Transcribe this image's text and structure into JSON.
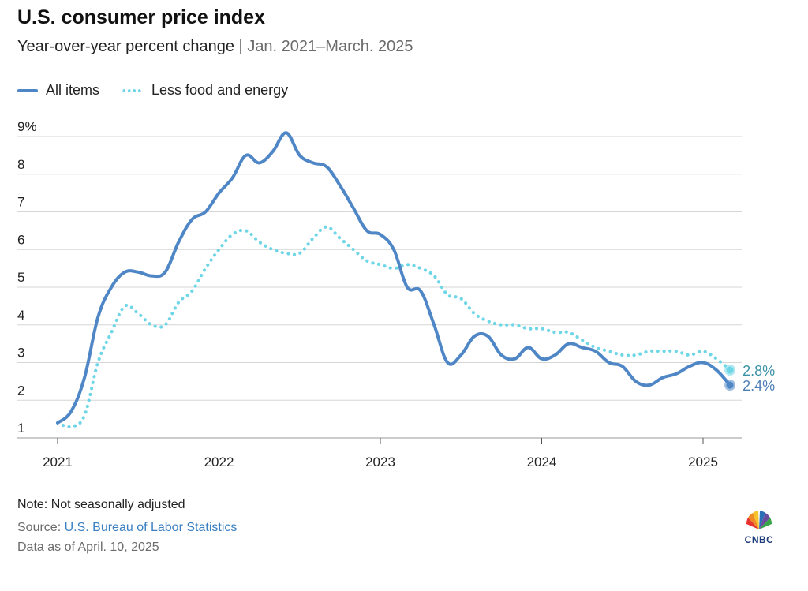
{
  "header": {
    "title": "U.S. consumer price index",
    "subtitle_main": "Year-over-year percent change",
    "subtitle_sep": "|",
    "subtitle_range": "Jan. 2021–March. 2025"
  },
  "legend": {
    "items": [
      {
        "label": "All items",
        "style": "solid",
        "color": "#4f86c6"
      },
      {
        "label": "Less food and energy",
        "style": "dotted",
        "color": "#6ed6e6"
      }
    ]
  },
  "chart_data": {
    "type": "line",
    "title": "U.S. consumer price index",
    "subtitle": "Year-over-year percent change | Jan. 2021–March. 2025",
    "xlabel": "",
    "ylabel": "",
    "ylim": [
      1,
      9
    ],
    "y_ticks": [
      "1",
      "2",
      "3",
      "4",
      "5",
      "6",
      "7",
      "8",
      "9%"
    ],
    "x_ticks": [
      "2021",
      "2022",
      "2023",
      "2024",
      "2025"
    ],
    "grid": true,
    "legend_position": "top-left",
    "x": [
      "2021-01",
      "2021-02",
      "2021-03",
      "2021-04",
      "2021-05",
      "2021-06",
      "2021-07",
      "2021-08",
      "2021-09",
      "2021-10",
      "2021-11",
      "2021-12",
      "2022-01",
      "2022-02",
      "2022-03",
      "2022-04",
      "2022-05",
      "2022-06",
      "2022-07",
      "2022-08",
      "2022-09",
      "2022-10",
      "2022-11",
      "2022-12",
      "2023-01",
      "2023-02",
      "2023-03",
      "2023-04",
      "2023-05",
      "2023-06",
      "2023-07",
      "2023-08",
      "2023-09",
      "2023-10",
      "2023-11",
      "2023-12",
      "2024-01",
      "2024-02",
      "2024-03",
      "2024-04",
      "2024-05",
      "2024-06",
      "2024-07",
      "2024-08",
      "2024-09",
      "2024-10",
      "2024-11",
      "2024-12",
      "2025-01",
      "2025-02",
      "2025-03"
    ],
    "series": [
      {
        "name": "All items",
        "color": "#4f86c6",
        "values": [
          1.4,
          1.7,
          2.6,
          4.2,
          5.0,
          5.4,
          5.4,
          5.3,
          5.4,
          6.2,
          6.8,
          7.0,
          7.5,
          7.9,
          8.5,
          8.3,
          8.6,
          9.1,
          8.5,
          8.3,
          8.2,
          7.7,
          7.1,
          6.5,
          6.4,
          6.0,
          5.0,
          4.9,
          4.0,
          3.0,
          3.2,
          3.7,
          3.7,
          3.2,
          3.1,
          3.4,
          3.1,
          3.2,
          3.5,
          3.4,
          3.3,
          3.0,
          2.9,
          2.5,
          2.4,
          2.6,
          2.7,
          2.9,
          3.0,
          2.8,
          2.4
        ]
      },
      {
        "name": "Less food and energy",
        "color": "#6ed6e6",
        "values": [
          1.4,
          1.3,
          1.6,
          3.0,
          3.8,
          4.5,
          4.3,
          4.0,
          4.0,
          4.6,
          4.9,
          5.5,
          6.0,
          6.4,
          6.5,
          6.2,
          6.0,
          5.9,
          5.9,
          6.3,
          6.6,
          6.3,
          6.0,
          5.7,
          5.6,
          5.5,
          5.6,
          5.5,
          5.3,
          4.8,
          4.7,
          4.3,
          4.1,
          4.0,
          4.0,
          3.9,
          3.9,
          3.8,
          3.8,
          3.6,
          3.4,
          3.3,
          3.2,
          3.2,
          3.3,
          3.3,
          3.3,
          3.2,
          3.3,
          3.1,
          2.8
        ]
      }
    ],
    "end_labels": [
      {
        "series": "Less food and energy",
        "text": "2.8%"
      },
      {
        "series": "All items",
        "text": "2.4%"
      }
    ]
  },
  "footer": {
    "note": "Note: Not seasonally adjusted",
    "source_prefix": "Source: ",
    "source_link": "U.S. Bureau of Labor Statistics",
    "as_of": "Data as of April. 10, 2025"
  },
  "logo": {
    "text": "CNBC",
    "icon": "cnbc-peacock-icon"
  }
}
